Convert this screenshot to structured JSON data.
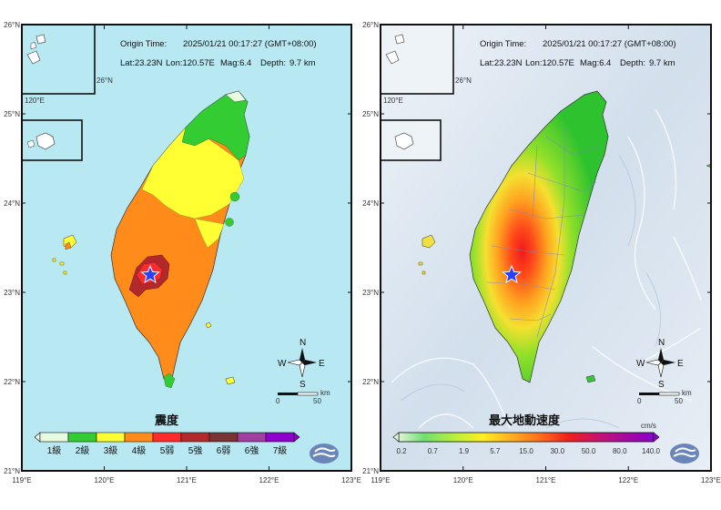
{
  "origin_time_label": "Origin Time:",
  "origin_time": "2025/01/21  00:17:27  (GMT+08:00)",
  "epicenter": {
    "lat": "Lat:23.23N",
    "lon": "Lon:120.57E",
    "mag": "Mag:6.4",
    "depth_label": "Depth:",
    "depth": "9.7  km"
  },
  "lat_ticks": [
    "26°N",
    "25°N",
    "24°N",
    "23°N",
    "22°N",
    "21°N"
  ],
  "lon_ticks": [
    "119°E",
    "120°E",
    "121°E",
    "122°E",
    "123°E"
  ],
  "inset": {
    "lon": "120°E",
    "lat": "26°N"
  },
  "compass": {
    "n": "N",
    "s": "S",
    "e": "E",
    "w": "W"
  },
  "scale": {
    "zero": "0",
    "fifty": "50",
    "unit": "km"
  },
  "left_map": {
    "title": "震度",
    "legend": [
      {
        "label": "1級",
        "color": "#e6fbe0"
      },
      {
        "label": "2級",
        "color": "#33cc33"
      },
      {
        "label": "3級",
        "color": "#ffff33"
      },
      {
        "label": "4級",
        "color": "#ff8c1a"
      },
      {
        "label": "5弱",
        "color": "#ff2a2a"
      },
      {
        "label": "5強",
        "color": "#b3282a"
      },
      {
        "label": "6弱",
        "color": "#7a3333"
      },
      {
        "label": "6強",
        "color": "#a03fa0"
      },
      {
        "label": "7級",
        "color": "#8f00cc"
      }
    ]
  },
  "right_map": {
    "title": "最大地動速度",
    "unit": "cm/s",
    "legend_ticks": [
      "0.2",
      "0.7",
      "1.9",
      "5.7",
      "15.0",
      "30.0",
      "50.0",
      "80.0",
      "140.0"
    ]
  },
  "colors": {
    "sea_left": "#b8e8f2",
    "sea_right": "#d9e6f2",
    "frame": "#111111"
  }
}
